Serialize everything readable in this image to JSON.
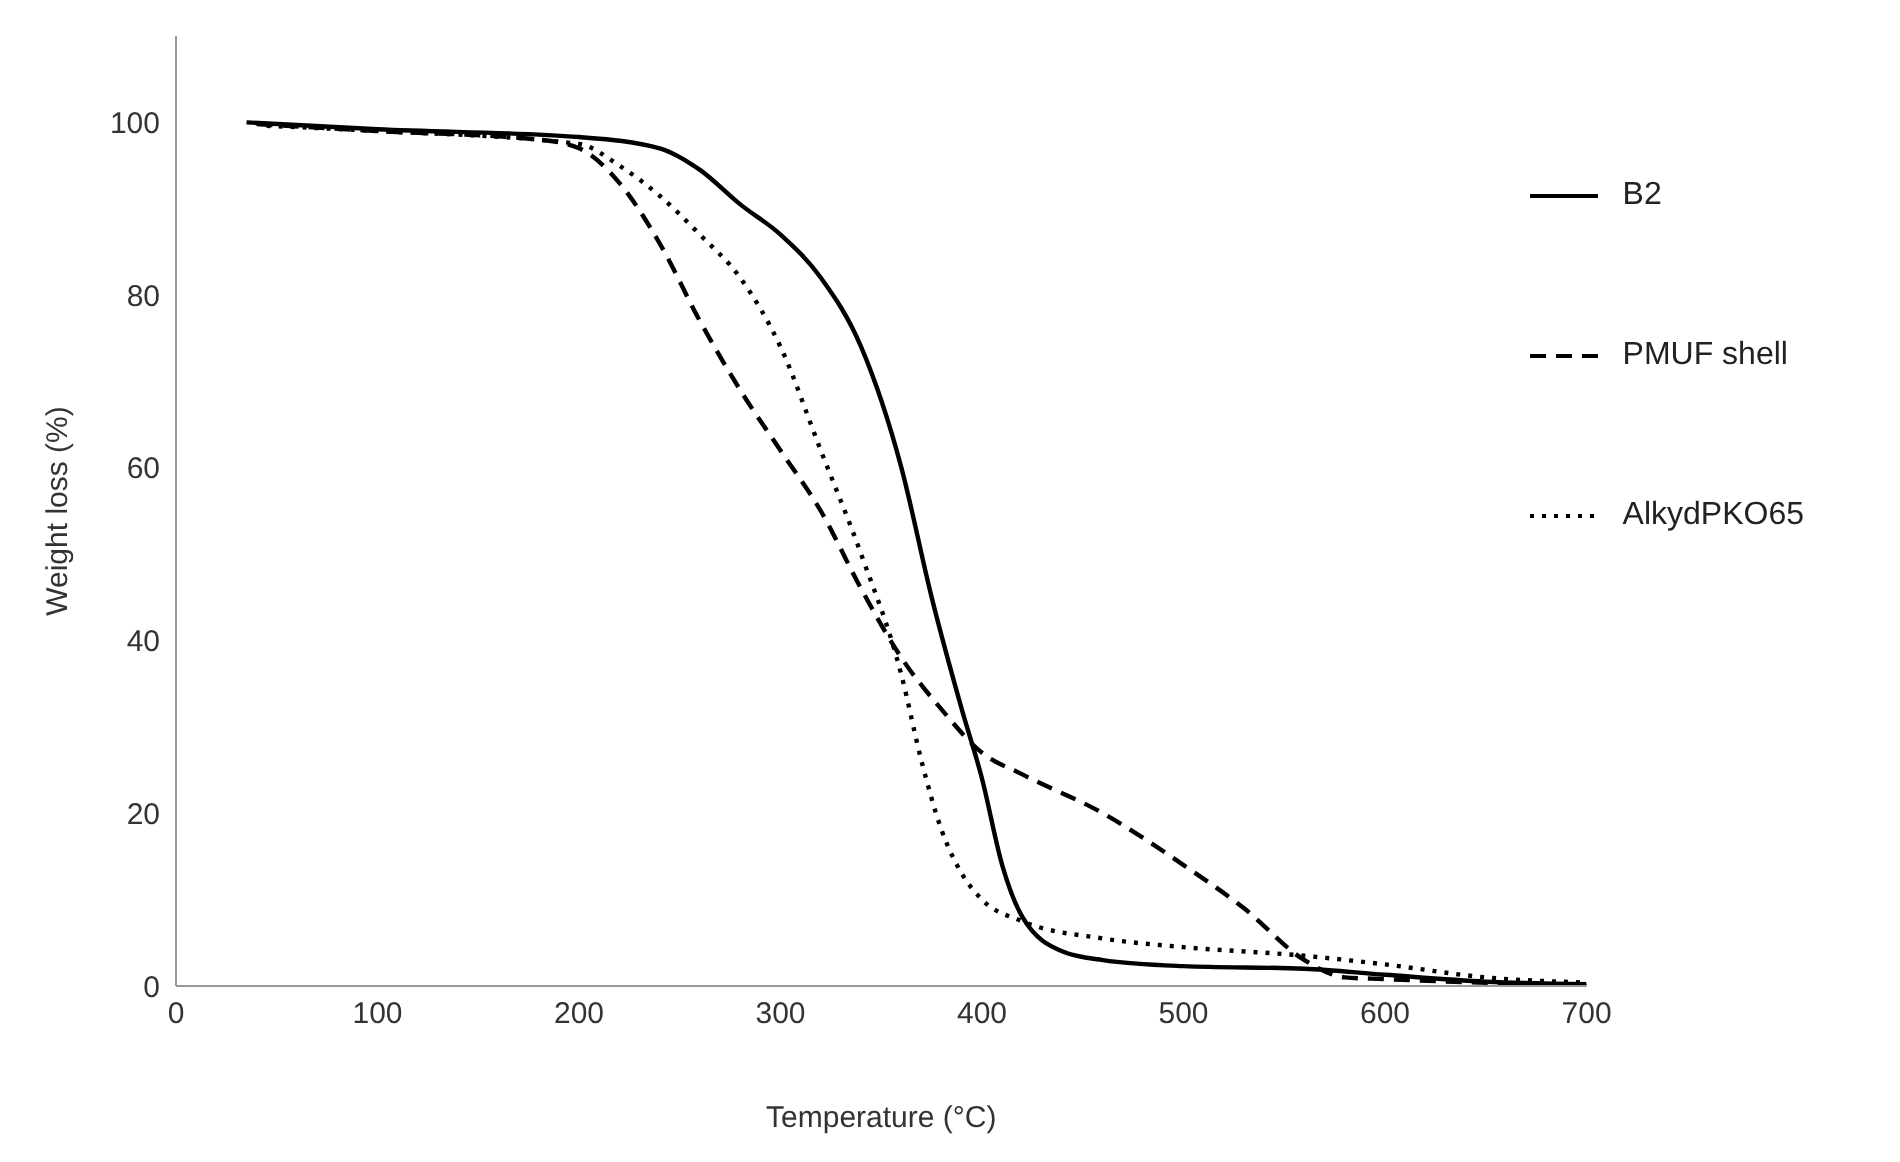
{
  "chart_data": {
    "type": "line",
    "xlabel": "Temperature (°C)",
    "ylabel": "Weight loss (%)",
    "xlim": [
      0,
      700
    ],
    "xticks": [
      0,
      100,
      200,
      300,
      400,
      500,
      600,
      700
    ],
    "ylim": [
      0,
      110
    ],
    "yticks": [
      0,
      20,
      40,
      60,
      80,
      100
    ],
    "grid": false,
    "legend": "top right",
    "marker": "none",
    "series": [
      {
        "name": "B2",
        "color": "#000000",
        "line_style": "solid",
        "x": [
          35,
          100,
          200,
          240,
          260,
          280,
          300,
          320,
          340,
          360,
          375,
          390,
          400,
          410,
          420,
          440,
          460,
          500,
          560,
          600,
          650,
          700
        ],
        "values": [
          100,
          99.2,
          98.3,
          97,
          94.5,
          90.5,
          87,
          82,
          74,
          60,
          45,
          32,
          24,
          14,
          8,
          4,
          3,
          2.3,
          2,
          1.3,
          0.5,
          0.2
        ]
      },
      {
        "name": "PMUF shell",
        "color": "#000000",
        "line_style": "dashed",
        "x": [
          40,
          100,
          180,
          200,
          220,
          240,
          260,
          280,
          300,
          320,
          340,
          360,
          380,
          400,
          420,
          460,
          500,
          530,
          560,
          580,
          600,
          700
        ],
        "values": [
          99.8,
          99,
          98,
          97,
          93,
          86,
          77,
          69,
          62,
          55,
          46,
          38,
          32,
          27,
          24.5,
          20,
          14,
          9,
          3,
          1,
          0.8,
          0
        ]
      },
      {
        "name": "AlkydPKO65",
        "color": "#000000",
        "line_style": "dotted",
        "x": [
          45,
          100,
          200,
          220,
          240,
          260,
          280,
          300,
          320,
          340,
          360,
          370,
          380,
          390,
          400,
          420,
          460,
          500,
          560,
          600,
          650,
          700
        ],
        "values": [
          99.6,
          99,
          97.5,
          95,
          91.5,
          87,
          82,
          74,
          62,
          50,
          36,
          26,
          18,
          13,
          10,
          7.5,
          5.5,
          4.5,
          3.5,
          2.5,
          1,
          0.4
        ]
      }
    ]
  }
}
